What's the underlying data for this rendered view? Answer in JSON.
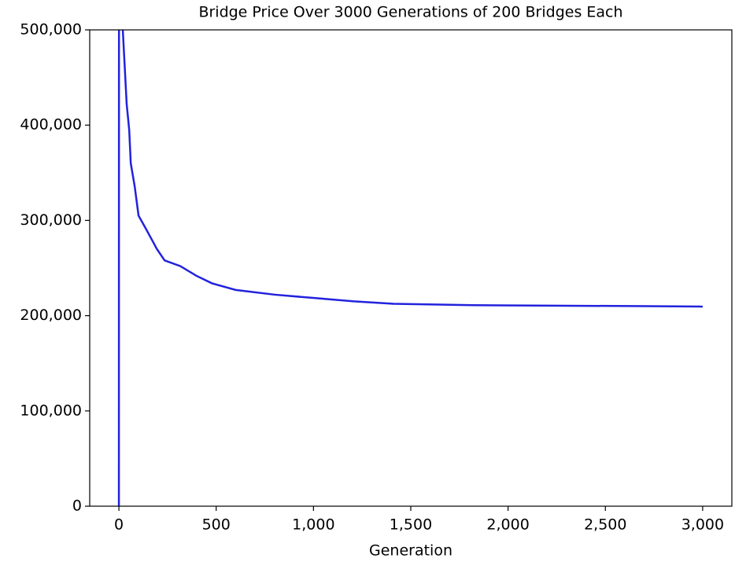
{
  "chart_data": {
    "type": "line",
    "title": "Bridge Price Over 3000 Generations of 200 Bridges Each",
    "xlabel": "Generation",
    "series": [
      {
        "color": "#2222dd",
        "x": [
          0,
          1,
          20,
          40,
          53,
          61,
          81,
          101,
          134,
          174,
          195,
          235,
          316,
          397,
          478,
          600,
          803,
          1005,
          1208,
          1411,
          1816,
          2222,
          2708,
          3000
        ],
        "values": [
          0,
          1000000,
          500000,
          422000,
          395000,
          360000,
          336000,
          305000,
          293000,
          278000,
          270000,
          258000,
          252000,
          242000,
          234000,
          227000,
          222000,
          218500,
          215000,
          212500,
          211000,
          210500,
          210000,
          209500
        ]
      }
    ],
    "xlim": [
      -150,
      3150
    ],
    "ylim": [
      0,
      500000
    ],
    "xticks": [
      0,
      500,
      {
        "value": 1000,
        "label": "1,000"
      },
      {
        "value": 1500,
        "label": "1,500"
      },
      {
        "value": 2000,
        "label": "2,000"
      },
      {
        "value": 2500,
        "label": "2,500"
      },
      {
        "value": 3000,
        "label": "3,000"
      }
    ],
    "yticks": [
      0,
      {
        "value": 100000,
        "label": "100,000"
      },
      {
        "value": 200000,
        "label": "200,000"
      },
      {
        "value": 300000,
        "label": "300,000"
      },
      {
        "value": 400000,
        "label": "400,000"
      },
      {
        "value": 500000,
        "label": "500,000"
      }
    ]
  }
}
